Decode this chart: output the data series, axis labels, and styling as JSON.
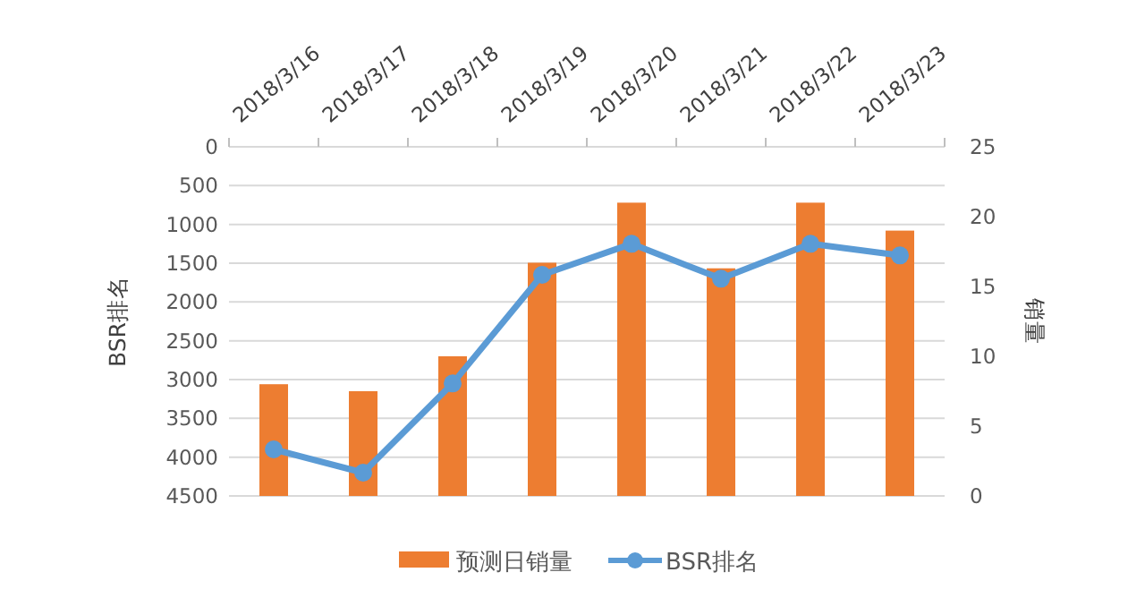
{
  "chart_data": {
    "type": "bar",
    "categories": [
      "2018/3/16",
      "2018/3/17",
      "2018/3/18",
      "2018/3/19",
      "2018/3/20",
      "2018/3/21",
      "2018/3/22",
      "2018/3/23"
    ],
    "series": [
      {
        "name": "预测日销量",
        "axis": "y2",
        "color": "#ed7d31",
        "values": [
          8,
          7.5,
          10,
          16.7,
          21,
          16.3,
          21,
          19
        ]
      },
      {
        "name": "BSR排名",
        "type": "line",
        "color": "#5b9bd5",
        "marker": "circle",
        "values": [
          3900,
          4200,
          3050,
          1650,
          1250,
          1700,
          1250,
          1400
        ]
      }
    ],
    "ylabel": "BSR排名",
    "y2label": "销量",
    "ylim": [
      4500,
      0
    ],
    "yticks": [
      0,
      500,
      1000,
      1500,
      2000,
      2500,
      3000,
      3500,
      4000,
      4500
    ],
    "y2lim": [
      0,
      25
    ],
    "y2ticks": [
      0,
      5,
      10,
      15,
      20,
      25
    ],
    "grid": "y",
    "legend": "bottom"
  }
}
